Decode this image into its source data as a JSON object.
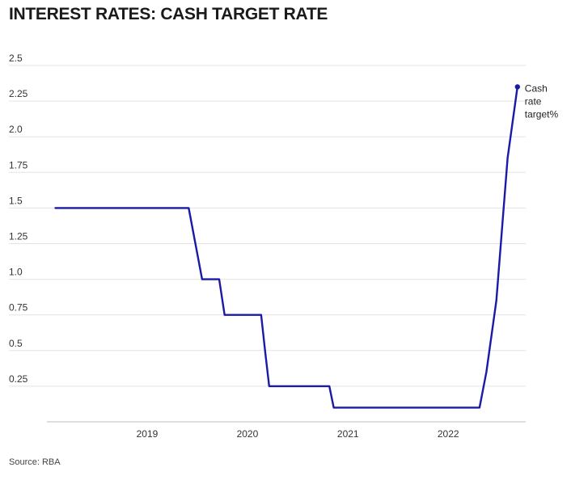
{
  "chart_data": {
    "type": "line",
    "title": "INTEREST RATES: CASH TARGET RATE",
    "source": "Source: RBA",
    "ylim": [
      0,
      2.5
    ],
    "y_ticks": [
      0.25,
      0.5,
      0.75,
      1.0,
      1.25,
      1.5,
      1.75,
      2.0,
      2.25,
      2.5
    ],
    "y_tick_labels": [
      "0.25",
      "0.5",
      "0.75",
      "1.0",
      "1.25",
      "1.5",
      "1.75",
      "2.0",
      "2.25",
      "2.5"
    ],
    "xlim": [
      "2018-01-01",
      "2022-10-10"
    ],
    "x_ticks": [
      "2019-01-01",
      "2020-01-01",
      "2021-01-01",
      "2022-01-01"
    ],
    "x_tick_labels": [
      "2019",
      "2020",
      "2021",
      "2022"
    ],
    "grid": true,
    "series": [
      {
        "name": "Cash rate target%",
        "color": "#1a1aa6",
        "points": [
          [
            "2018-02-01",
            1.5
          ],
          [
            "2019-06-01",
            1.5
          ],
          [
            "2019-07-20",
            1.0
          ],
          [
            "2019-09-20",
            1.0
          ],
          [
            "2019-10-10",
            0.75
          ],
          [
            "2020-02-20",
            0.75
          ],
          [
            "2020-03-05",
            0.5
          ],
          [
            "2020-03-20",
            0.25
          ],
          [
            "2020-10-25",
            0.25
          ],
          [
            "2020-11-10",
            0.1
          ],
          [
            "2022-04-25",
            0.1
          ],
          [
            "2022-05-20",
            0.35
          ],
          [
            "2022-06-25",
            0.85
          ],
          [
            "2022-08-05",
            1.85
          ],
          [
            "2022-09-10",
            2.35
          ]
        ]
      }
    ]
  }
}
